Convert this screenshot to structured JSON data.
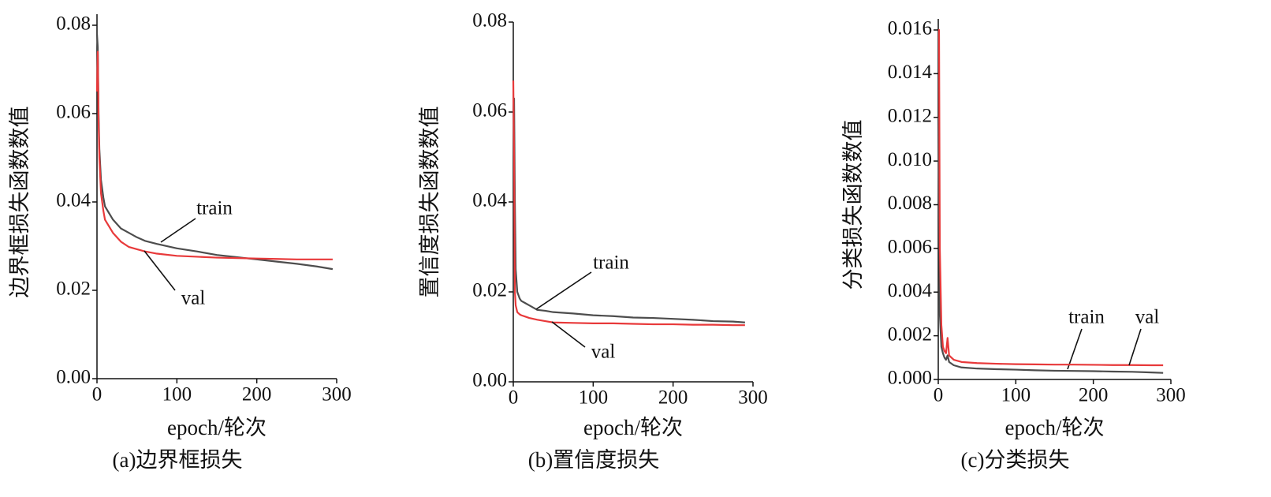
{
  "chart_data": [
    {
      "type": "line",
      "caption": "(a)边界框损失",
      "xlabel": "epoch/轮次",
      "ylabel": "边界框损失函数数值",
      "x": [
        0,
        1,
        2,
        3,
        5,
        8,
        10,
        15,
        20,
        30,
        40,
        50,
        60,
        75,
        100,
        125,
        150,
        175,
        200,
        225,
        250,
        275,
        295
      ],
      "series": [
        {
          "name": "train",
          "color": "#4d4d4d",
          "values": [
            0.078,
            0.075,
            0.06,
            0.052,
            0.045,
            0.041,
            0.039,
            0.0375,
            0.036,
            0.034,
            0.033,
            0.032,
            0.0312,
            0.0305,
            0.0295,
            0.0288,
            0.028,
            0.0275,
            0.027,
            0.0265,
            0.026,
            0.0254,
            0.0248
          ]
        },
        {
          "name": "val",
          "color": "#e8393a",
          "values": [
            0.065,
            0.074,
            0.058,
            0.05,
            0.042,
            0.038,
            0.036,
            0.0345,
            0.033,
            0.031,
            0.0298,
            0.0293,
            0.0288,
            0.0283,
            0.0278,
            0.0276,
            0.0274,
            0.0273,
            0.0272,
            0.0271,
            0.027,
            0.027,
            0.027
          ]
        }
      ],
      "xlim": [
        0,
        300
      ],
      "xticks": [
        0,
        100,
        200,
        300
      ],
      "ylim": [
        0,
        0.08
      ],
      "yticks": [
        {
          "value": 0,
          "label": "0.00"
        },
        0.02,
        0.04,
        0.06,
        0.08
      ]
    },
    {
      "type": "line",
      "caption": "(b)置信度损失",
      "xlabel": "epoch/轮次",
      "ylabel": "置信度损失函数数值",
      "x": [
        0,
        1,
        2,
        3,
        5,
        8,
        10,
        15,
        20,
        30,
        40,
        50,
        75,
        100,
        125,
        150,
        175,
        200,
        225,
        250,
        275,
        290
      ],
      "series": [
        {
          "name": "train",
          "color": "#4d4d4d",
          "values": [
            0.06,
            0.063,
            0.04,
            0.025,
            0.02,
            0.0185,
            0.018,
            0.0175,
            0.017,
            0.016,
            0.0158,
            0.0155,
            0.0152,
            0.0148,
            0.0146,
            0.0143,
            0.0142,
            0.014,
            0.0138,
            0.0135,
            0.0134,
            0.0132
          ]
        },
        {
          "name": "val",
          "color": "#e8393a",
          "values": [
            0.067,
            0.05,
            0.02,
            0.017,
            0.0155,
            0.015,
            0.0148,
            0.0145,
            0.0142,
            0.0138,
            0.0135,
            0.0132,
            0.0131,
            0.013,
            0.013,
            0.0129,
            0.0128,
            0.0128,
            0.0127,
            0.0127,
            0.0126,
            0.0126
          ]
        }
      ],
      "xlim": [
        0,
        300
      ],
      "xticks": [
        0,
        100,
        200,
        300
      ],
      "ylim": [
        0,
        0.08
      ],
      "yticks": [
        {
          "value": 0,
          "label": "0.00"
        },
        0.02,
        0.04,
        0.06,
        0.08
      ]
    },
    {
      "type": "line",
      "caption": "(c)分类损失",
      "xlabel": "epoch/轮次",
      "ylabel": "分类损失函数数值",
      "x": [
        0,
        1,
        2,
        4,
        6,
        8,
        10,
        12,
        14,
        20,
        30,
        50,
        75,
        100,
        125,
        150,
        175,
        200,
        225,
        250,
        275,
        290
      ],
      "series": [
        {
          "name": "train",
          "color": "#4d4d4d",
          "values": [
            0.012,
            0.008,
            0.003,
            0.0015,
            0.0012,
            0.001,
            0.0009,
            0.0011,
            0.0008,
            0.00065,
            0.00055,
            0.0005,
            0.00047,
            0.00045,
            0.00042,
            0.0004,
            0.00039,
            0.00038,
            0.00036,
            0.00035,
            0.00032,
            0.0003
          ]
        },
        {
          "name": "val",
          "color": "#e8393a",
          "values": [
            0.016,
            0.016,
            0.006,
            0.0025,
            0.0015,
            0.0013,
            0.0012,
            0.0019,
            0.0011,
            0.0009,
            0.0008,
            0.00075,
            0.00072,
            0.0007,
            0.00069,
            0.00068,
            0.00068,
            0.00067,
            0.00066,
            0.00066,
            0.00065,
            0.00065
          ]
        }
      ],
      "xlim": [
        0,
        300
      ],
      "xticks": [
        0,
        100,
        200,
        300
      ],
      "ylim": [
        0,
        0.016
      ],
      "yticks": [
        {
          "value": 0,
          "label": "0.000"
        },
        0.002,
        0.004,
        0.006,
        0.008,
        {
          "value": 0.01,
          "label": "0.010"
        },
        {
          "value": 0.012,
          "label": "0.012"
        },
        0.014,
        {
          "value": 0.016,
          "label": "0.016"
        }
      ]
    }
  ]
}
